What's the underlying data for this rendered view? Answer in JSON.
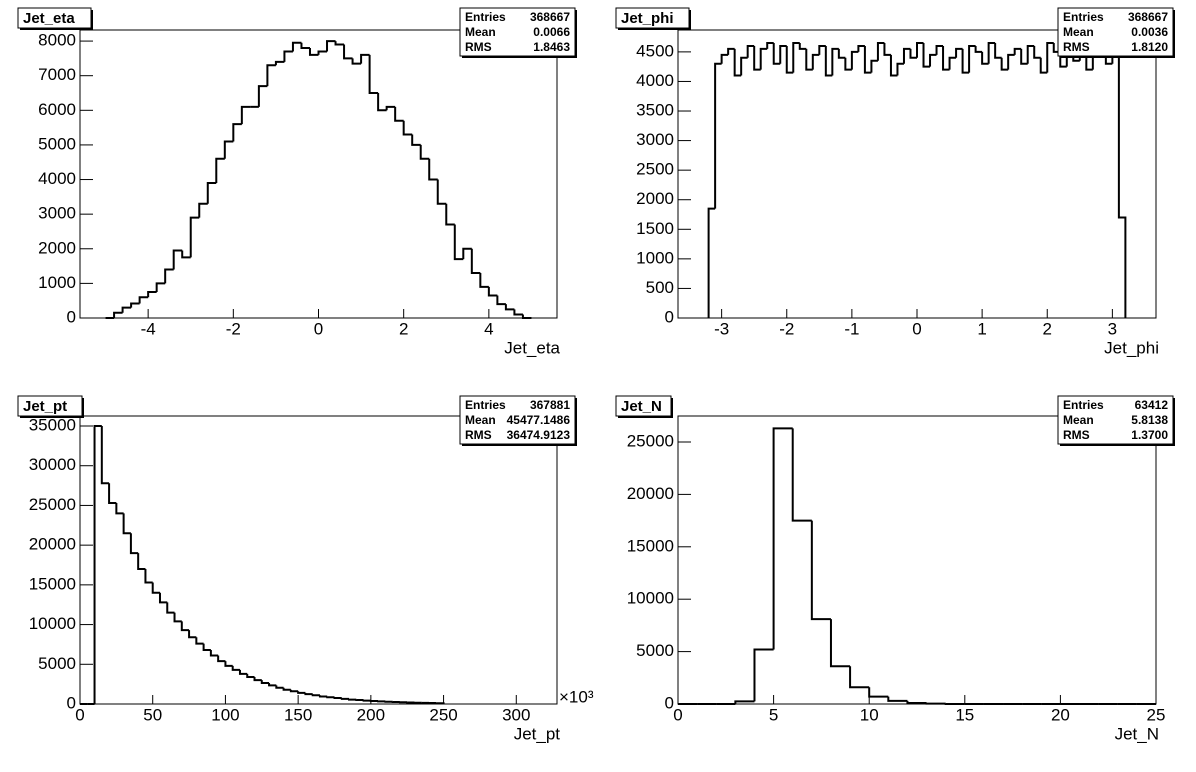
{
  "chart_data": [
    {
      "type": "histogram",
      "title": "Jet_eta",
      "x_label": "Jet_eta",
      "color": "#000000",
      "bins": [
        -5,
        -4.8,
        -4.6,
        -4.4,
        -4.2,
        -4,
        -3.8,
        -3.6,
        -3.4,
        -3.2,
        -3,
        -2.8,
        -2.6,
        -2.4,
        -2.2,
        -2,
        -1.8,
        -1.6,
        -1.4,
        -1.2,
        -1,
        -0.8,
        -0.6,
        -0.4,
        -0.2,
        0,
        0.2,
        0.4,
        0.6,
        0.8,
        1,
        1.2,
        1.4,
        1.6,
        1.8,
        2,
        2.2,
        2.4,
        2.6,
        2.8,
        3,
        3.2,
        3.4,
        3.6,
        3.8,
        4,
        4.2,
        4.4,
        4.6,
        4.8,
        5
      ],
      "values": [
        0,
        150,
        300,
        420,
        600,
        750,
        1000,
        1400,
        1950,
        1750,
        2900,
        3300,
        3900,
        4600,
        5100,
        5600,
        6100,
        6100,
        6700,
        7300,
        7400,
        7700,
        7950,
        7800,
        7600,
        7700,
        8000,
        7900,
        7500,
        7350,
        7600,
        6500,
        6000,
        6100,
        5700,
        5300,
        5000,
        4600,
        4000,
        3300,
        2700,
        1700,
        2000,
        1300,
        900,
        650,
        400,
        250,
        100,
        0
      ],
      "xlim": [
        -5.6,
        5.6
      ],
      "xticks": [
        -4,
        -2,
        0,
        2,
        4
      ],
      "ylim": [
        0,
        8320
      ],
      "yticks": [
        0,
        1000,
        2000,
        3000,
        4000,
        5000,
        6000,
        7000,
        8000
      ],
      "stats": [
        {
          "label": "Entries",
          "value": "368667"
        },
        {
          "label": "Mean",
          "value": "0.0066"
        },
        {
          "label": "RMS",
          "value": "1.8463"
        }
      ]
    },
    {
      "type": "histogram",
      "title": "Jet_phi",
      "x_label": "Jet_phi",
      "color": "#000000",
      "bins": [
        -3.2,
        -3.1,
        -3,
        -2.9,
        -2.8,
        -2.7,
        -2.6,
        -2.5,
        -2.4,
        -2.3,
        -2.2,
        -2.1,
        -2,
        -1.9,
        -1.8,
        -1.7,
        -1.6,
        -1.5,
        -1.4,
        -1.3,
        -1.2,
        -1.1,
        -1,
        -0.9,
        -0.8,
        -0.7,
        -0.6,
        -0.5,
        -0.4,
        -0.3,
        -0.2,
        -0.1,
        0,
        0.1,
        0.2,
        0.3,
        0.4,
        0.5,
        0.6,
        0.7,
        0.8,
        0.9,
        1,
        1.1,
        1.2,
        1.3,
        1.4,
        1.5,
        1.6,
        1.7,
        1.8,
        1.9,
        2,
        2.1,
        2.2,
        2.3,
        2.4,
        2.5,
        2.6,
        2.7,
        2.8,
        2.9,
        3,
        3.1,
        3.2
      ],
      "values": [
        1850,
        4300,
        4450,
        4550,
        4100,
        4400,
        4600,
        4200,
        4550,
        4650,
        4300,
        4600,
        4150,
        4650,
        4550,
        4200,
        4450,
        4600,
        4100,
        4550,
        4400,
        4200,
        4500,
        4600,
        4150,
        4350,
        4650,
        4450,
        4100,
        4300,
        4550,
        4400,
        4650,
        4250,
        4450,
        4600,
        4200,
        4400,
        4550,
        4150,
        4600,
        4500,
        4300,
        4650,
        4400,
        4200,
        4450,
        4550,
        4300,
        4600,
        4400,
        4150,
        4650,
        4500,
        4250,
        4600,
        4350,
        4500,
        4200,
        4450,
        4650,
        4300,
        4600,
        1700
      ],
      "xlim": [
        -3.67,
        3.67
      ],
      "xticks": [
        -3,
        -2,
        -1,
        0,
        1,
        2,
        3
      ],
      "ylim": [
        0,
        4870
      ],
      "yticks": [
        0,
        500,
        1000,
        1500,
        2000,
        2500,
        3000,
        3500,
        4000,
        4500
      ],
      "stats": [
        {
          "label": "Entries",
          "value": "368667"
        },
        {
          "label": "Mean",
          "value": "0.0036"
        },
        {
          "label": "RMS",
          "value": "1.8120"
        }
      ]
    },
    {
      "type": "histogram",
      "title": "Jet_pt",
      "x_label": "Jet_pt",
      "x_multiplier": "×10³",
      "color": "#000000",
      "bins": [
        0,
        5,
        10,
        15,
        20,
        25,
        30,
        35,
        40,
        45,
        50,
        55,
        60,
        65,
        70,
        75,
        80,
        85,
        90,
        95,
        100,
        105,
        110,
        115,
        120,
        125,
        130,
        135,
        140,
        145,
        150,
        155,
        160,
        165,
        170,
        175,
        180,
        185,
        190,
        195,
        200,
        205,
        210,
        215,
        220,
        225,
        230,
        235,
        240,
        245,
        250
      ],
      "values": [
        0,
        0,
        35000,
        27800,
        25300,
        24000,
        21500,
        19000,
        17000,
        15300,
        14000,
        12800,
        11500,
        10400,
        9300,
        8400,
        7600,
        6800,
        6100,
        5400,
        4800,
        4300,
        3800,
        3400,
        3000,
        2650,
        2350,
        2050,
        1800,
        1600,
        1400,
        1250,
        1100,
        950,
        850,
        750,
        650,
        550,
        500,
        430,
        380,
        330,
        290,
        250,
        220,
        190,
        160,
        140,
        120,
        100
      ],
      "xlim": [
        0,
        328
      ],
      "xticks": [
        0,
        50,
        100,
        150,
        200,
        250,
        300
      ],
      "ylim": [
        0,
        36260
      ],
      "yticks": [
        0,
        5000,
        10000,
        15000,
        20000,
        25000,
        30000,
        35000
      ],
      "stats": [
        {
          "label": "Entries",
          "value": "367881"
        },
        {
          "label": "Mean",
          "value": "45477.1486"
        },
        {
          "label": "RMS",
          "value": "36474.9123"
        }
      ]
    },
    {
      "type": "histogram",
      "title": "Jet_N",
      "x_label": "Jet_N",
      "color": "#000000",
      "bins": [
        0,
        1,
        2,
        3,
        4,
        5,
        6,
        7,
        8,
        9,
        10,
        11,
        12,
        13,
        14,
        15,
        16,
        17,
        18,
        19,
        20,
        21,
        22,
        23,
        24,
        25
      ],
      "values": [
        0,
        0,
        0,
        250,
        5200,
        26300,
        17500,
        8100,
        3600,
        1600,
        700,
        300,
        100,
        40,
        0,
        0,
        0,
        0,
        0,
        0,
        0,
        0,
        0,
        0,
        0
      ],
      "xlim": [
        0,
        25
      ],
      "xticks": [
        0,
        5,
        10,
        15,
        20,
        25
      ],
      "ylim": [
        0,
        27480
      ],
      "yticks": [
        0,
        5000,
        10000,
        15000,
        20000,
        25000
      ],
      "stats": [
        {
          "label": "Entries",
          "value": "63412"
        },
        {
          "label": "Mean",
          "value": "5.8138"
        },
        {
          "label": "RMS",
          "value": "1.3700"
        }
      ]
    }
  ]
}
